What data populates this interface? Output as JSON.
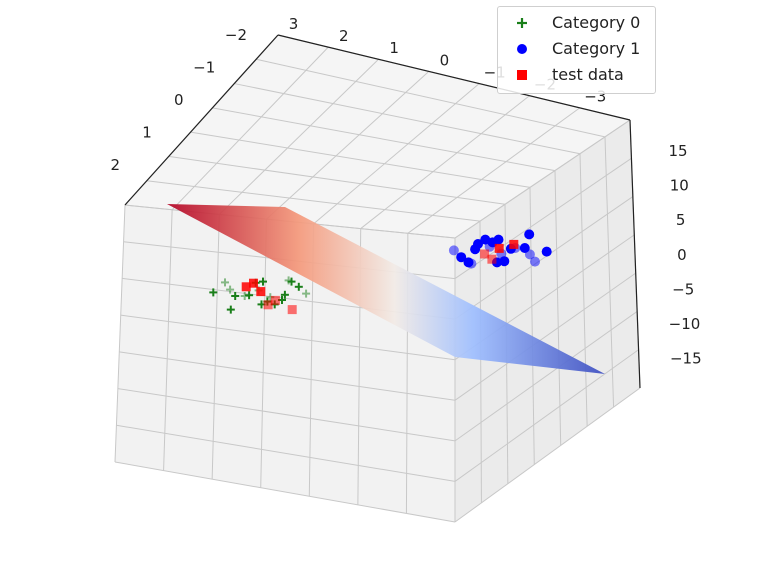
{
  "chart_data": {
    "type": "scatter",
    "projection": "3d",
    "x_ticks": [
      "3",
      "2",
      "1",
      "0",
      "−1",
      "−2",
      "−3"
    ],
    "y_ticks": [
      "−2",
      "−1",
      "0",
      "1",
      "2"
    ],
    "z_ticks": [
      "15",
      "10",
      "5",
      "0",
      "−5",
      "−10",
      "−15"
    ],
    "zlim": [
      -15,
      15
    ],
    "grid": true,
    "legend_position": "top-right",
    "surface": {
      "colormap": "coolwarm",
      "description_free": true
    },
    "series": [
      {
        "name": "Category 0",
        "marker": "plus",
        "color": "#1a7f1a",
        "points": [
          [
            -1.0,
            1.2,
            0.5
          ],
          [
            -0.8,
            1.0,
            -1.2
          ],
          [
            -1.2,
            1.4,
            0.3
          ],
          [
            -0.9,
            1.1,
            -0.6
          ],
          [
            -1.1,
            0.9,
            1.1
          ],
          [
            -0.7,
            1.3,
            -0.2
          ],
          [
            -1.3,
            1.2,
            0.9
          ],
          [
            -1.0,
            0.8,
            -1.5
          ],
          [
            -0.6,
            1.1,
            0.4
          ],
          [
            -1.4,
            1.0,
            1.6
          ],
          [
            -0.9,
            1.5,
            -0.9
          ],
          [
            -1.1,
            1.2,
            0.0
          ],
          [
            -0.8,
            0.7,
            0.8
          ],
          [
            -1.2,
            1.6,
            -1.1
          ],
          [
            -1.0,
            1.0,
            1.3
          ],
          [
            -0.5,
            1.2,
            -0.4
          ],
          [
            -1.5,
            1.1,
            0.6
          ],
          [
            -0.9,
            0.9,
            -1.8
          ],
          [
            -1.1,
            1.4,
            0.2
          ],
          [
            -0.7,
            1.0,
            1.0
          ]
        ]
      },
      {
        "name": "Category 1",
        "marker": "circle",
        "color": "#0000ff",
        "points": [
          [
            1.0,
            -1.2,
            -0.5
          ],
          [
            0.8,
            -1.0,
            1.2
          ],
          [
            1.2,
            -1.4,
            -0.3
          ],
          [
            0.9,
            -1.1,
            0.6
          ],
          [
            1.1,
            -0.9,
            -1.1
          ],
          [
            0.7,
            -1.3,
            0.2
          ],
          [
            1.3,
            -1.2,
            -0.9
          ],
          [
            1.0,
            -0.8,
            1.5
          ],
          [
            0.6,
            -1.1,
            -0.4
          ],
          [
            1.4,
            -1.0,
            -1.6
          ],
          [
            0.9,
            -1.5,
            0.9
          ],
          [
            1.1,
            -1.2,
            0.0
          ],
          [
            0.8,
            -0.7,
            -0.8
          ],
          [
            1.2,
            -1.6,
            1.1
          ],
          [
            1.0,
            -1.0,
            -1.3
          ],
          [
            0.5,
            -1.2,
            0.4
          ],
          [
            1.5,
            -1.1,
            -0.6
          ],
          [
            0.9,
            -0.9,
            1.8
          ],
          [
            1.1,
            -1.4,
            -0.2
          ],
          [
            0.7,
            -1.0,
            -1.0
          ]
        ]
      },
      {
        "name": "test data",
        "marker": "square",
        "color": "#ff0000",
        "points": [
          [
            -1.0,
            1.1,
            0.2
          ],
          [
            -0.8,
            1.3,
            -0.8
          ],
          [
            -1.2,
            0.9,
            0.7
          ],
          [
            -0.9,
            1.2,
            -1.4
          ],
          [
            -1.1,
            1.0,
            1.2
          ],
          [
            -0.6,
            1.4,
            -2.0
          ],
          [
            1.0,
            -1.1,
            0.3
          ],
          [
            0.8,
            -1.3,
            -0.5
          ],
          [
            1.2,
            -0.9,
            0.9
          ],
          [
            0.9,
            -1.2,
            -1.1
          ]
        ]
      }
    ]
  },
  "legend": {
    "items": [
      {
        "label": "Category 0",
        "color": "#1a7f1a",
        "marker": "plus"
      },
      {
        "label": "Category 1",
        "color": "#0000ff",
        "marker": "circle"
      },
      {
        "label": "test data",
        "color": "#ff0000",
        "marker": "square"
      }
    ]
  }
}
